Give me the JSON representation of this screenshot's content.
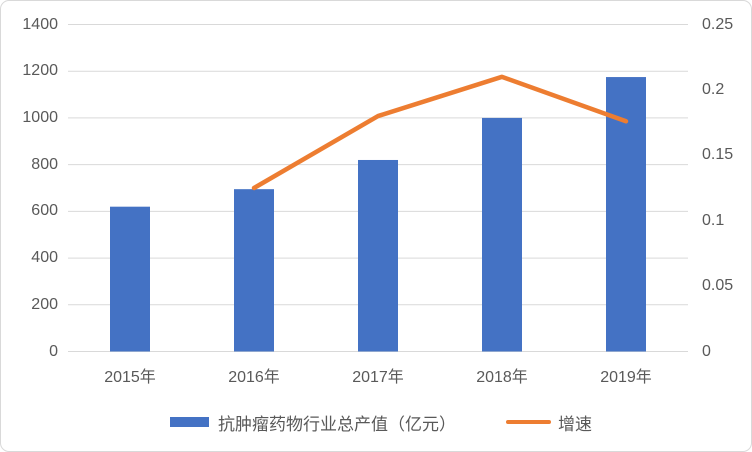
{
  "chart_data": {
    "type": "bar",
    "combo": "bar+line",
    "title": "",
    "categories": [
      "2015年",
      "2016年",
      "2017年",
      "2018年",
      "2019年"
    ],
    "series": [
      {
        "name": "抗肿瘤药物行业总产值（亿元）",
        "type": "bar",
        "axis": "left",
        "color": "#4472C4",
        "values": [
          620,
          695,
          820,
          1000,
          1175
        ]
      },
      {
        "name": "增速",
        "type": "line",
        "axis": "right",
        "color": "#ED7D31",
        "values": [
          null,
          0.125,
          0.18,
          0.21,
          0.176
        ]
      }
    ],
    "left_axis": {
      "min": 0,
      "max": 1400,
      "step": 200,
      "tick_values": [
        0,
        200,
        400,
        600,
        800,
        1000,
        1200,
        1400
      ],
      "ticks": [
        "0",
        "200",
        "400",
        "600",
        "800",
        "1000",
        "1200",
        "1400"
      ]
    },
    "right_axis": {
      "min": 0,
      "max": 0.25,
      "step": 0.05,
      "tick_values": [
        0,
        0.05,
        0.1,
        0.15,
        0.2,
        0.25
      ],
      "ticks": [
        "0",
        "0.05",
        "0.1",
        "0.15",
        "0.2",
        "0.25"
      ]
    },
    "grid": true,
    "legend_position": "bottom",
    "xlabel": "",
    "ylabel_left": "",
    "ylabel_right": ""
  },
  "colors": {
    "bar": "#4472C4",
    "line": "#ED7D31",
    "grid": "#D9D9D9",
    "axis_line": "#D9D9D9",
    "tick_text": "#595959",
    "border": "#D9D9D9",
    "background": "#FFFFFF"
  }
}
